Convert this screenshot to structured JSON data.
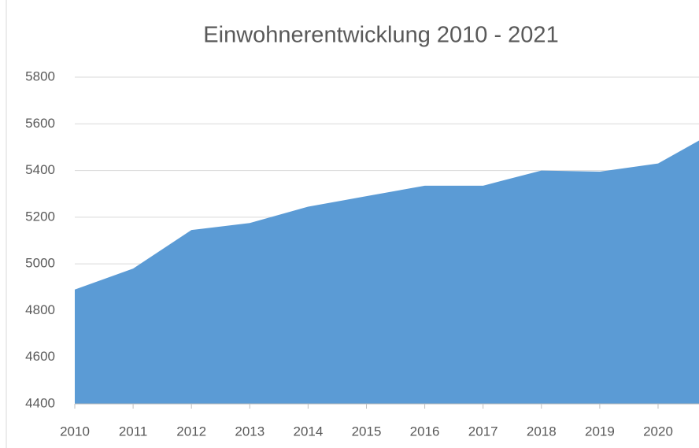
{
  "chart_data": {
    "type": "area",
    "title": "Einwohnerentwicklung 2010 - 2021",
    "categories": [
      "2010",
      "2011",
      "2012",
      "2013",
      "2014",
      "2015",
      "2016",
      "2017",
      "2018",
      "2019",
      "2020",
      null
    ],
    "values": [
      4890,
      4980,
      5145,
      5175,
      5245,
      5290,
      5335,
      5335,
      5400,
      5395,
      5430,
      5570
    ],
    "color": "#5b9bd5",
    "ylim": [
      4400,
      5800
    ],
    "yticks": [
      4400,
      4600,
      4800,
      5000,
      5200,
      5400,
      5600,
      5800
    ],
    "grid": true
  }
}
